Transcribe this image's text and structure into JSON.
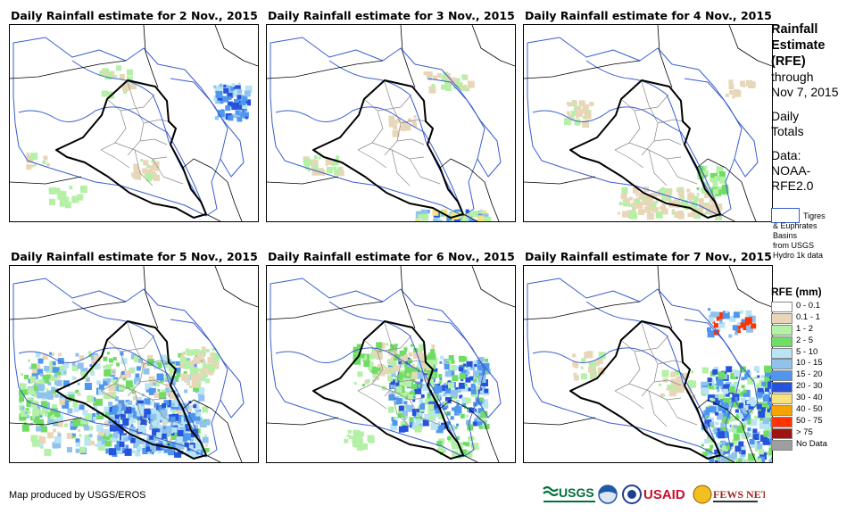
{
  "panels": [
    {
      "title": "Daily Rainfall estimate for 2 Nov., 2015"
    },
    {
      "title": "Daily Rainfall estimate for 3 Nov., 2015"
    },
    {
      "title": "Daily Rainfall estimate for 4 Nov., 2015"
    },
    {
      "title": "Daily Rainfall estimate for 5 Nov., 2015"
    },
    {
      "title": "Daily Rainfall estimate for 6 Nov., 2015"
    },
    {
      "title": "Daily Rainfall estimate for 7 Nov., 2015"
    }
  ],
  "side": {
    "title_line1": "Rainfall",
    "title_line2": "Estimate",
    "title_line3": "(RFE)",
    "through": "through",
    "date": "Nov 7, 2015",
    "daily1": "Daily",
    "daily2": "Totals",
    "data_label": "Data:",
    "data_src1": "NOAA-",
    "data_src2": "RFE2.0"
  },
  "basin_key": {
    "line1": "Tigres",
    "line2": "& Euphrates",
    "line3": "Basins",
    "line4": "from USGS",
    "line5": "Hydro 1k data",
    "color": "#3a5fcd"
  },
  "legend": {
    "title": "RFE (mm)",
    "items": [
      {
        "label": "0 - 0.1",
        "color": "#ffffff"
      },
      {
        "label": "0.1 - 1",
        "color": "#e8d6b8"
      },
      {
        "label": "1 - 2",
        "color": "#b4f0a6"
      },
      {
        "label": "2 - 5",
        "color": "#6fdc64"
      },
      {
        "label": "5 - 10",
        "color": "#b8e4f4"
      },
      {
        "label": "10 - 15",
        "color": "#8fc3ee"
      },
      {
        "label": "15 - 20",
        "color": "#4f97ee"
      },
      {
        "label": "20 - 30",
        "color": "#2553dc"
      },
      {
        "label": "30 - 40",
        "color": "#f7e27e"
      },
      {
        "label": "40 - 50",
        "color": "#f5a300"
      },
      {
        "label": "50 - 75",
        "color": "#ff3300"
      },
      {
        "label": "> 75",
        "color": "#a11313"
      },
      {
        "label": "No Data",
        "color": "#9e9e9e"
      }
    ]
  },
  "credit": "Map produced by USGS/EROS",
  "logos": [
    "USGS",
    "NOAA",
    "USAID",
    "FEWS NET"
  ]
}
